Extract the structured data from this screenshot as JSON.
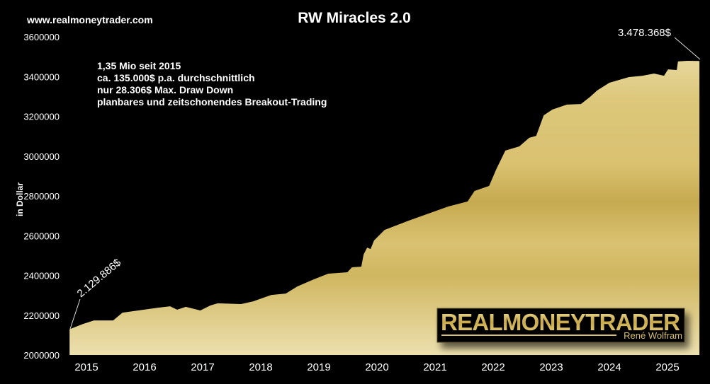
{
  "website": "www.realmoneytrader.com",
  "notes": [
    "1,35 Mio seit 2015",
    "ca. 135.000$  p.a. durchschnittlich",
    "nur 28.306$ Max. Draw Down",
    "planbares und zeitschonendes Breakout-Trading"
  ],
  "logo": {
    "text": "REALMONEYTRADER",
    "subtext": "René Wolfram"
  },
  "colors": {
    "background": "#000000",
    "fill_light": "#e8dca4",
    "fill_gold": "#c8ac52",
    "text": "#ffffff"
  },
  "chart_data": {
    "type": "area",
    "title": "RW Miracles 2.0",
    "xlabel": "",
    "ylabel": "in Dollar",
    "xlim": [
      2014.71,
      2025.56
    ],
    "ylim": [
      2000000,
      3600000
    ],
    "yticks": [
      "2000000",
      "2200000",
      "2400000",
      "2600000",
      "2800000",
      "3000000",
      "3200000",
      "3400000",
      "3600000"
    ],
    "xticks": [
      "2015",
      "2016",
      "2017",
      "2018",
      "2019",
      "2020",
      "2021",
      "2022",
      "2023",
      "2024",
      "2025"
    ],
    "grid": false,
    "annotations": {
      "start": "2.129.886$",
      "end": "3.478.368$"
    },
    "x": [
      2014.71,
      2014.73,
      2014.94,
      2015.13,
      2015.46,
      2015.62,
      2016.23,
      2016.44,
      2016.56,
      2016.71,
      2016.96,
      2017.13,
      2017.26,
      2017.66,
      2017.87,
      2018.18,
      2018.43,
      2018.63,
      2018.91,
      2019.16,
      2019.49,
      2019.57,
      2019.73,
      2019.77,
      2019.83,
      2019.89,
      2019.95,
      2020.13,
      2020.55,
      2020.95,
      2021.23,
      2021.56,
      2021.68,
      2021.93,
      2022.05,
      2022.21,
      2022.45,
      2022.62,
      2022.74,
      2022.87,
      2023.02,
      2023.27,
      2023.51,
      2023.67,
      2023.79,
      2024.0,
      2024.33,
      2024.57,
      2024.77,
      2024.94,
      2025.01,
      2025.16,
      2025.18,
      2025.34,
      2025.55
    ],
    "y": [
      2129886,
      2132000,
      2156000,
      2174000,
      2174000,
      2213000,
      2238000,
      2245000,
      2228000,
      2242000,
      2224000,
      2249000,
      2260000,
      2256000,
      2270000,
      2302000,
      2309000,
      2345000,
      2380000,
      2409000,
      2416000,
      2441000,
      2444000,
      2505000,
      2540000,
      2533000,
      2576000,
      2629000,
      2676000,
      2718000,
      2747000,
      2772000,
      2825000,
      2850000,
      2932000,
      3028000,
      3049000,
      3092000,
      3102000,
      3205000,
      3234000,
      3259000,
      3262000,
      3298000,
      3330000,
      3369000,
      3397000,
      3404000,
      3415000,
      3404000,
      3436000,
      3433000,
      3476000,
      3479000,
      3478368
    ]
  }
}
